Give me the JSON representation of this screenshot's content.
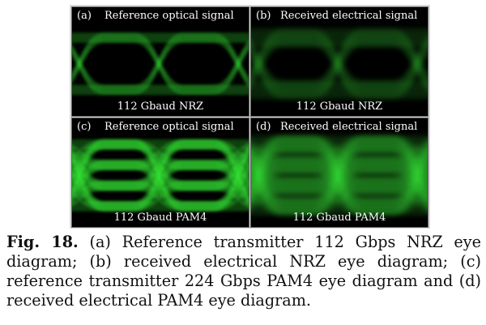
{
  "panels": [
    {
      "letter": "(a)",
      "title": "Reference optical signal",
      "subtitle": "112 Gbaud NRZ",
      "kind": "nrz",
      "noise": "low"
    },
    {
      "letter": "(b)",
      "title": "Received electrical signal",
      "subtitle": "112 Gbaud NRZ",
      "kind": "nrz",
      "noise": "high"
    },
    {
      "letter": "(c)",
      "title": "Reference optical signal",
      "subtitle": "112 Gbaud PAM4",
      "kind": "pam4",
      "noise": "low"
    },
    {
      "letter": "(d)",
      "title": "Received electrical signal",
      "subtitle": "112 Gbaud PAM4",
      "kind": "pam4",
      "noise": "high"
    }
  ],
  "caption": {
    "label": "Fig. 18.",
    "text": "(a) Reference transmitter 112 Gbps NRZ eye diagram; (b) received electrical NRZ eye diagram; (c) reference transmitter 224 Gbps PAM4 eye diagram and (d) received electrical PAM4 eye diagram."
  },
  "colors": {
    "trace": "#3cff3c",
    "background": "#000000"
  }
}
